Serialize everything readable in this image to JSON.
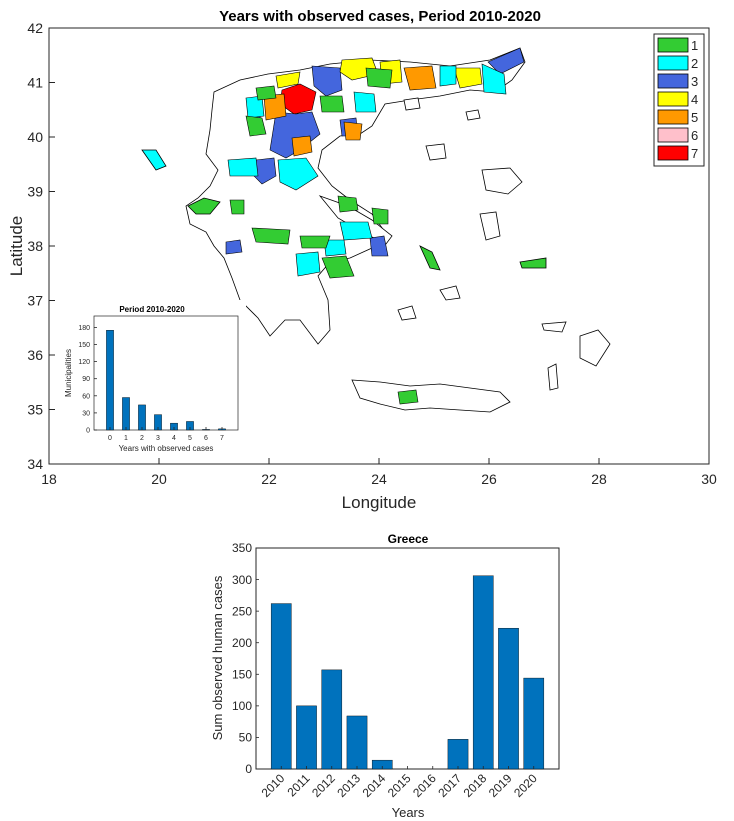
{
  "map": {
    "title": "Years with observed cases, Period 2010-2020",
    "xlabel": "Longitude",
    "ylabel": "Latitude",
    "xlim": [
      18,
      30
    ],
    "ylim": [
      34,
      42
    ],
    "xticks": [
      "18",
      "20",
      "22",
      "24",
      "26",
      "28",
      "30"
    ],
    "yticks": [
      "34",
      "35",
      "36",
      "37",
      "38",
      "39",
      "40",
      "41",
      "42"
    ],
    "legend": {
      "placement": "top-right",
      "items": [
        {
          "label": "1",
          "color": "#33cc33"
        },
        {
          "label": "2",
          "color": "#00ffff"
        },
        {
          "label": "3",
          "color": "#4466dd"
        },
        {
          "label": "4",
          "color": "#ffff00"
        },
        {
          "label": "5",
          "color": "#ff9900"
        },
        {
          "label": "6",
          "color": "#ffc0cb"
        },
        {
          "label": "7",
          "color": "#ff0000"
        }
      ]
    }
  },
  "chart_data": [
    {
      "type": "bar",
      "title": "Period 2010-2020",
      "xlabel": "Years with observed cases",
      "ylabel": "Municipalities",
      "categories": [
        "0",
        "1",
        "2",
        "3",
        "4",
        "5",
        "6",
        "7"
      ],
      "values": [
        175,
        57,
        44,
        27,
        12,
        15,
        1,
        2
      ],
      "ylim": [
        0,
        200
      ],
      "yticks": [
        "0",
        "30",
        "60",
        "90",
        "120",
        "150",
        "180"
      ],
      "color": "#0072bd"
    },
    {
      "type": "bar",
      "title": "Greece",
      "xlabel": "Years",
      "ylabel": "Sum observed human cases",
      "categories": [
        "2010",
        "2011",
        "2012",
        "2013",
        "2014",
        "2015",
        "2016",
        "2017",
        "2018",
        "2019",
        "2020"
      ],
      "values": [
        262,
        100,
        157,
        84,
        14,
        0,
        0,
        47,
        306,
        223,
        144
      ],
      "ylim": [
        0,
        350
      ],
      "yticks": [
        "0",
        "50",
        "100",
        "150",
        "200",
        "250",
        "300",
        "350"
      ],
      "color": "#0072bd"
    }
  ]
}
